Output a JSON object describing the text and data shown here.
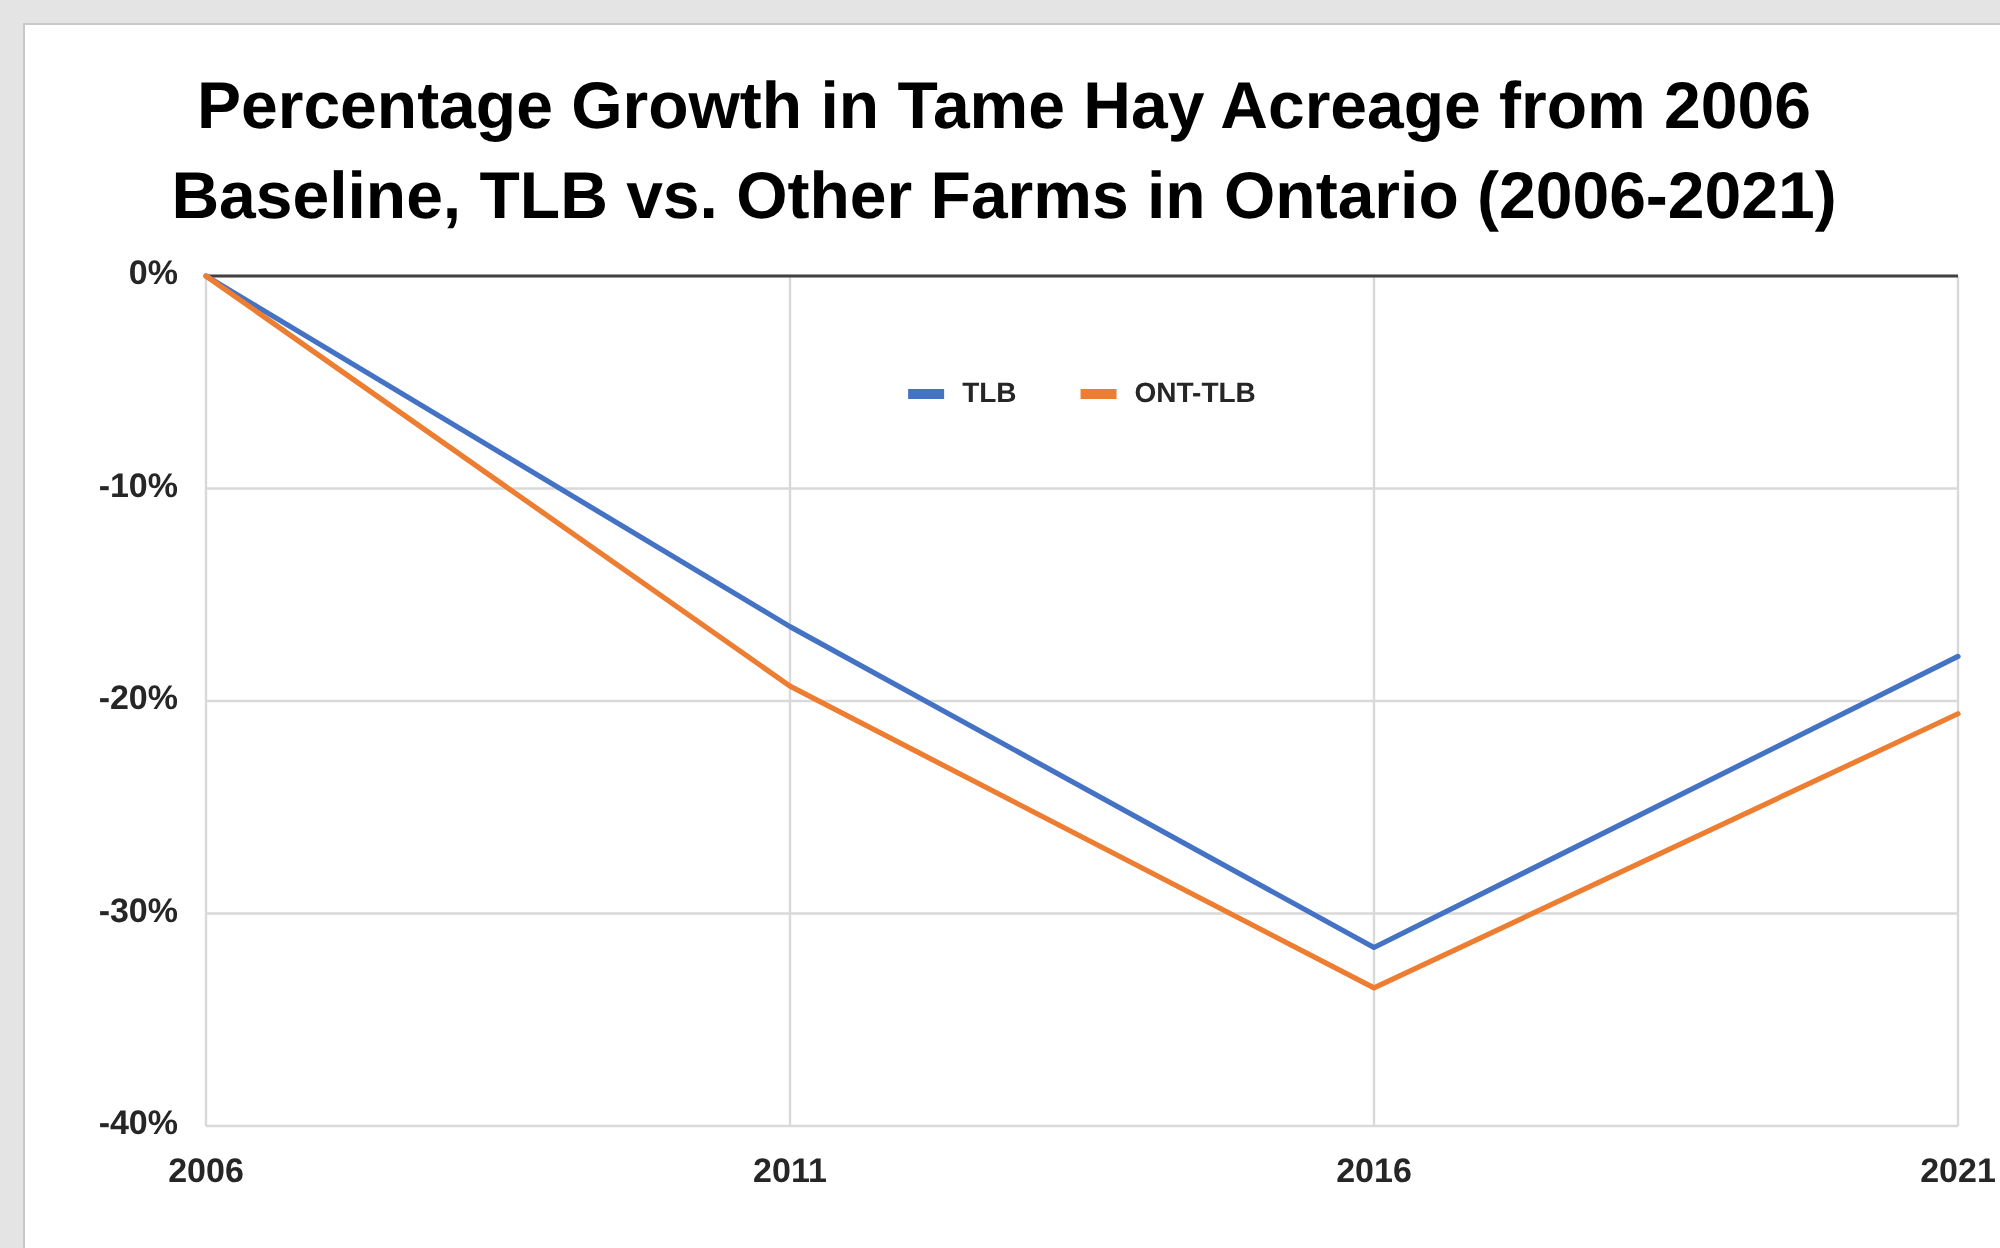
{
  "chart_data": {
    "type": "line",
    "title": "Percentage Growth in Tame Hay Acreage from 2006 Baseline, TLB vs. Other Farms in Ontario (2006-2021)",
    "categories": [
      "2006",
      "2011",
      "2016",
      "2021"
    ],
    "series": [
      {
        "name": "TLB",
        "color": "#4472c4",
        "values": [
          0,
          -16.5,
          -31.6,
          -17.9
        ]
      },
      {
        "name": "ONT-TLB",
        "color": "#ed7d31",
        "values": [
          0,
          -19.3,
          -33.5,
          -20.6
        ]
      }
    ],
    "ylim": [
      -40,
      0
    ],
    "yticks": [
      {
        "value": -40,
        "label": "-40%"
      },
      {
        "value": -30,
        "label": "-30%"
      },
      {
        "value": -20,
        "label": "-20%"
      },
      {
        "value": -10,
        "label": "-10%"
      },
      {
        "value": 0,
        "label": "0%"
      }
    ],
    "grid": true,
    "legend": "top"
  }
}
